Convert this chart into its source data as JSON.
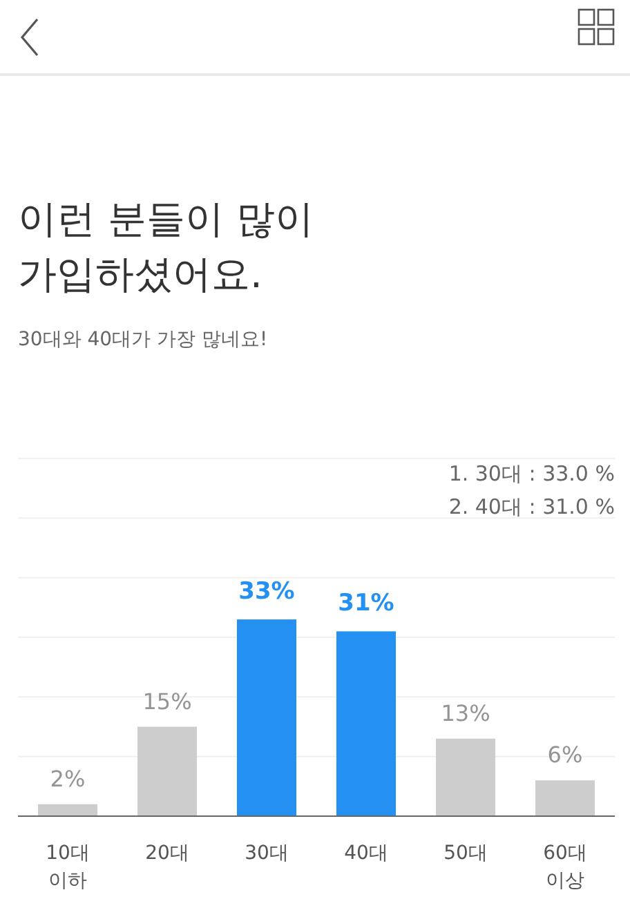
{
  "chart_data": {
    "type": "bar",
    "title": "이런 분들이 많이\n가입하셨어요.",
    "subtitle": "30대와 40대가 가장 많네요!",
    "annotations": [
      "1. 30대 : 33.0 %",
      "2. 40대 : 31.0 %"
    ],
    "categories": [
      "10대\n이하",
      "20대",
      "30대",
      "40대",
      "50대",
      "60대\n이상"
    ],
    "values": [
      2,
      15,
      33,
      31,
      13,
      6
    ],
    "colors": [
      "#cdcdcd",
      "#cdcdcd",
      "#2490f2",
      "#2490f2",
      "#cdcdcd",
      "#cdcdcd"
    ],
    "value_labels": [
      "2%",
      "15%",
      "33%",
      "31%",
      "13%",
      "6%"
    ],
    "ylim": [
      0,
      60
    ],
    "yticks": [
      {
        "value": 10,
        "label": null
      },
      {
        "value": 20,
        "label": null
      },
      {
        "value": 30,
        "label": null
      },
      {
        "value": 40,
        "label": null
      },
      {
        "value": 50,
        "label": null
      },
      {
        "value": 60,
        "label": null
      }
    ],
    "grid": "y",
    "tick_labels": "x"
  }
}
